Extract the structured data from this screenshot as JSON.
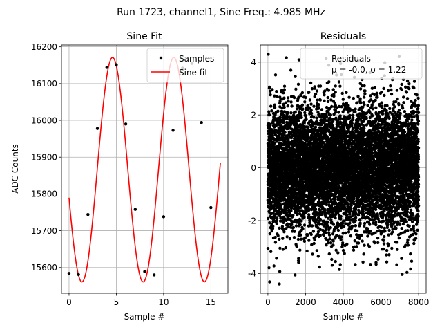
{
  "figure": {
    "suptitle": "Run 1723, channel1, Sine Freq.: 4.985 MHz"
  },
  "colors": {
    "fit": "#ff0000",
    "points": "#000000",
    "grid": "#b0b0b0"
  },
  "chart_data": [
    {
      "type": "line",
      "title": "Sine Fit",
      "xlabel": "Sample #",
      "ylabel": "ADC Counts",
      "xlim": [
        -0.8,
        16.8
      ],
      "ylim": [
        15530,
        16205
      ],
      "xticks": [
        0,
        5,
        10,
        15
      ],
      "yticks": [
        15600,
        15700,
        15800,
        15900,
        16000,
        16100,
        16200
      ],
      "grid": true,
      "legend": "top-right",
      "series": [
        {
          "name": "Samples",
          "kind": "scatter",
          "x": [
            0,
            1,
            2,
            3,
            4,
            5,
            6,
            7,
            8,
            9,
            10,
            11,
            12,
            13,
            14,
            15
          ],
          "y": [
            15584,
            15581,
            15744,
            15978,
            16144,
            16151,
            15990,
            15758,
            15589,
            15580,
            15738,
            15973,
            16142,
            16155,
            15994,
            15763
          ]
        },
        {
          "name": "Sine fit",
          "kind": "line",
          "function": {
            "amplitude": 305,
            "offset": 15866,
            "period": 6.48,
            "peak_x": 4.6
          },
          "x_range": [
            0,
            16
          ]
        }
      ]
    },
    {
      "type": "scatter",
      "title": "Residuals",
      "xlabel": "Sample #",
      "ylabel": "",
      "xlim": [
        -400,
        8400
      ],
      "ylim": [
        -4.75,
        4.65
      ],
      "xticks": [
        0,
        2000,
        4000,
        6000,
        8000
      ],
      "yticks": [
        -4,
        -2,
        0,
        2,
        4
      ],
      "grid": true,
      "legend": "top-right",
      "series": [
        {
          "name": "Residuals",
          "stats_label": "μ = -0.0, σ = 1.22",
          "n": 8000,
          "mean": 0.0,
          "std": 1.22,
          "x_range": [
            0,
            8000
          ]
        }
      ]
    }
  ]
}
